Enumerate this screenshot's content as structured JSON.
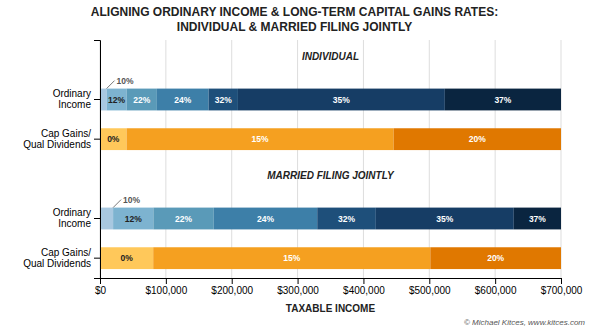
{
  "chart_data": {
    "type": "bar",
    "orientation": "horizontal",
    "title": "ALIGNING ORDINARY INCOME & LONG-TERM CAPITAL GAINS RATES:",
    "subtitle": "INDIVIDUAL & MARRIED FILING JOINTLY",
    "xlabel": "TAXABLE INCOME",
    "copyright": "© Michael Kitces, www.kitces.com",
    "xlim": [
      0,
      700000
    ],
    "xticks": [
      {
        "value": 0,
        "label": "$0"
      },
      {
        "value": 100000,
        "label": "$100,000"
      },
      {
        "value": 200000,
        "label": "$200,000"
      },
      {
        "value": 300000,
        "label": "$300,000"
      },
      {
        "value": 400000,
        "label": "$400,000"
      },
      {
        "value": 500000,
        "label": "$500,000"
      },
      {
        "value": 600000,
        "label": "$600,000"
      },
      {
        "value": 700000,
        "label": "$700,000"
      }
    ],
    "grid": true,
    "groups": [
      {
        "label": "INDIVIDUAL",
        "rows": [
          {
            "category": "Ordinary\nIncome",
            "segments": [
              {
                "label": "10%",
                "start": 0,
                "end": 9950,
                "color": "#a8c8e0"
              },
              {
                "label": "12%",
                "start": 9950,
                "end": 40525,
                "color": "#7db3d0"
              },
              {
                "label": "22%",
                "start": 40525,
                "end": 86375,
                "color": "#5a9ab8"
              },
              {
                "label": "24%",
                "start": 86375,
                "end": 164925,
                "color": "#3d7fa8"
              },
              {
                "label": "32%",
                "start": 164925,
                "end": 209425,
                "color": "#1e4f7a"
              },
              {
                "label": "35%",
                "start": 209425,
                "end": 523600,
                "color": "#163d65"
              },
              {
                "label": "37%",
                "start": 523600,
                "end": 700000,
                "color": "#0a2540"
              }
            ]
          },
          {
            "category": "Cap Gains/\nQual Dividends",
            "segments": [
              {
                "label": "0%",
                "start": 0,
                "end": 40400,
                "color": "#ffc85a"
              },
              {
                "label": "15%",
                "start": 40400,
                "end": 445850,
                "color": "#f5a020"
              },
              {
                "label": "20%",
                "start": 445850,
                "end": 700000,
                "color": "#e07800"
              }
            ]
          }
        ]
      },
      {
        "label": "MARRIED FILING JOINTLY",
        "rows": [
          {
            "category": "Ordinary\nIncome",
            "segments": [
              {
                "label": "10%",
                "start": 0,
                "end": 19900,
                "color": "#a8c8e0"
              },
              {
                "label": "12%",
                "start": 19900,
                "end": 81050,
                "color": "#7db3d0"
              },
              {
                "label": "22%",
                "start": 81050,
                "end": 172750,
                "color": "#5a9ab8"
              },
              {
                "label": "24%",
                "start": 172750,
                "end": 329850,
                "color": "#3d7fa8"
              },
              {
                "label": "32%",
                "start": 329850,
                "end": 418850,
                "color": "#1e4f7a"
              },
              {
                "label": "35%",
                "start": 418850,
                "end": 628300,
                "color": "#163d65"
              },
              {
                "label": "37%",
                "start": 628300,
                "end": 700000,
                "color": "#0a2540"
              }
            ]
          },
          {
            "category": "Cap Gains/\nQual Dividends",
            "segments": [
              {
                "label": "0%",
                "start": 0,
                "end": 80800,
                "color": "#ffc85a"
              },
              {
                "label": "15%",
                "start": 80800,
                "end": 501600,
                "color": "#f5a020"
              },
              {
                "label": "20%",
                "start": 501600,
                "end": 700000,
                "color": "#e07800"
              }
            ]
          }
        ]
      }
    ]
  }
}
